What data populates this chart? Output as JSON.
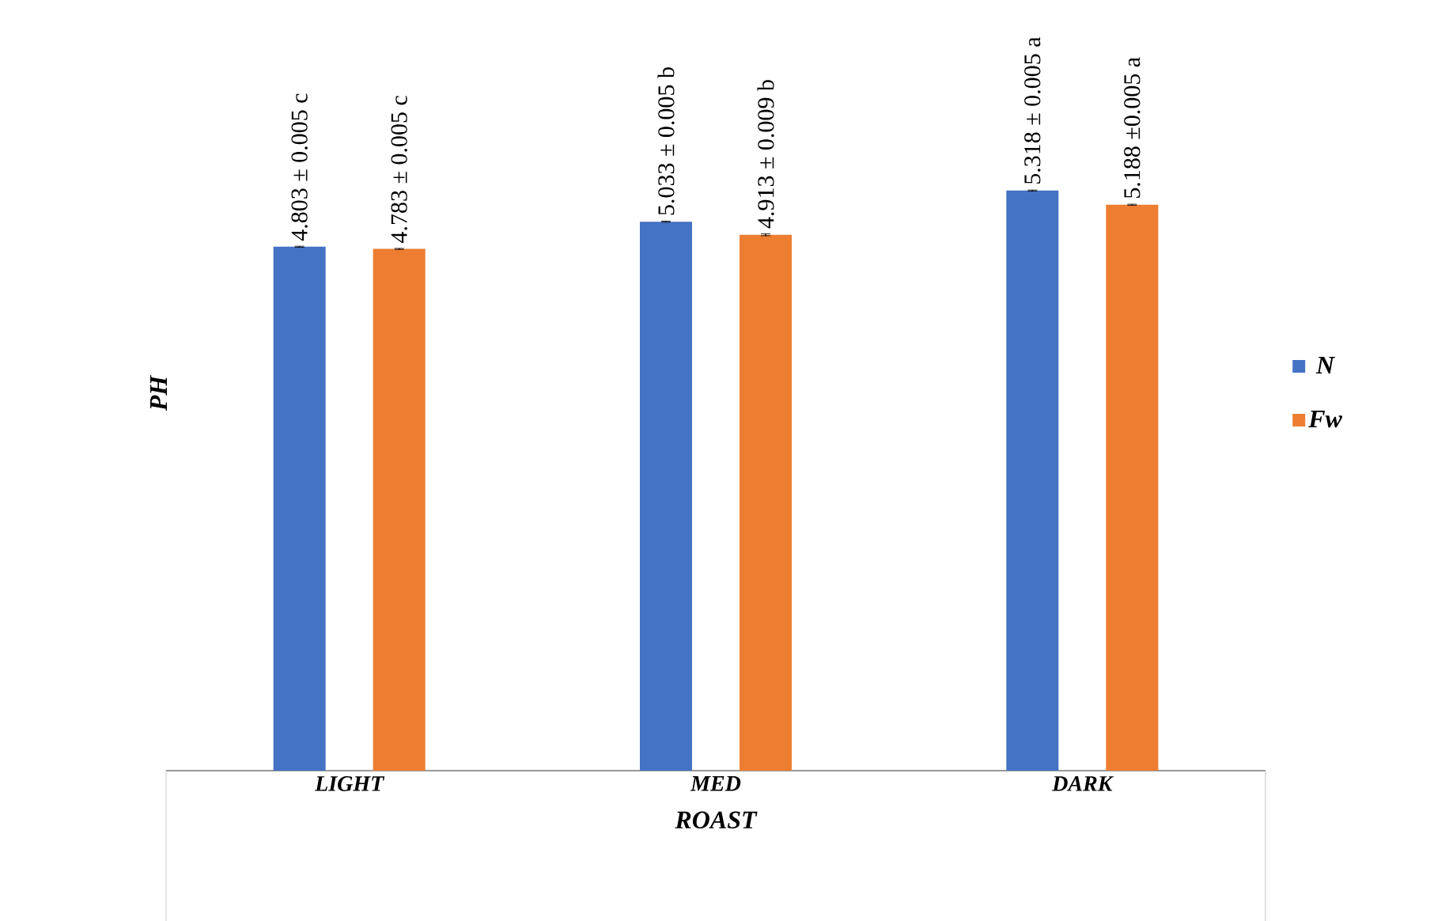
{
  "chart_data": {
    "type": "bar",
    "xlabel": "ROAST",
    "ylabel": "PH",
    "categories": [
      "LIGHT",
      "MED",
      "DARK"
    ],
    "series": [
      {
        "name": "N",
        "color": "#4472c4",
        "values": [
          4.803,
          5.033,
          5.318
        ],
        "errors": [
          0.005,
          0.005,
          0.005
        ],
        "value_labels": [
          "4.803 ± 0.005 c",
          "5.033 ± 0.005 b",
          "5.318 ± 0.005 a"
        ]
      },
      {
        "name": "Fw",
        "color": "#ed7d31",
        "values": [
          4.783,
          4.913,
          5.188
        ],
        "errors": [
          0.005,
          0.009,
          0.005
        ],
        "value_labels": [
          "4.783 ± 0.005 c",
          "4.913 ± 0.009 b",
          "5.188 ±0.005 a"
        ]
      }
    ],
    "tick_labels": "x",
    "legend": "right"
  }
}
